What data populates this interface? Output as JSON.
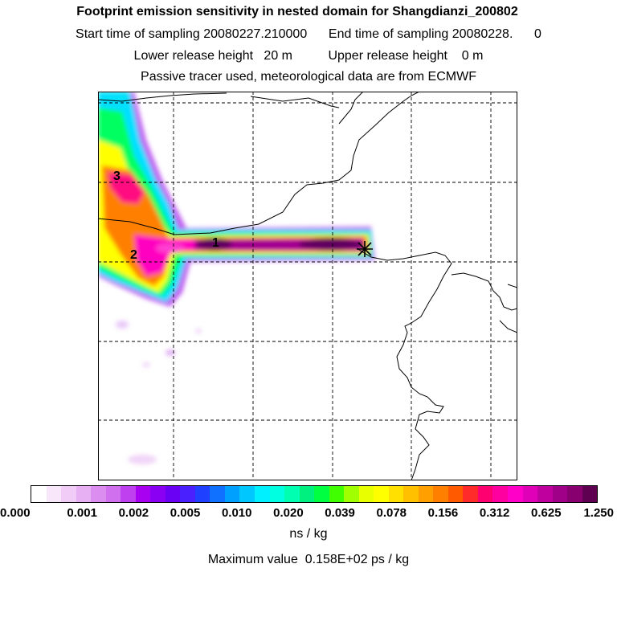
{
  "header": {
    "title": "Footprint emission sensitivity in nested domain for Shangdianzi_200802",
    "sampling_line": "Start time of sampling 20080227.210000      End time of sampling 20080228.      0",
    "release_line": "Lower release height   20 m          Upper release height    0 m",
    "tracer_line": "Passive tracer used, meteorological data are from ECMWF"
  },
  "map": {
    "site_labels": [
      "1",
      "2",
      "3"
    ],
    "release_marker": "x"
  },
  "legend": {
    "tick_labels": [
      "0.000",
      "0.001",
      "0.002",
      "0.005",
      "0.010",
      "0.020",
      "0.039",
      "0.078",
      "0.156",
      "0.312",
      "0.625",
      "1.250"
    ],
    "colors": [
      "#ffffff",
      "#f8e6fb",
      "#f0ccf6",
      "#e6b0f2",
      "#dc8ef0",
      "#d070ee",
      "#bf40ee",
      "#a800f0",
      "#8a00f2",
      "#6a00f4",
      "#4a20ff",
      "#2040ff",
      "#1070ff",
      "#00a0ff",
      "#00c8ff",
      "#00f0ff",
      "#00ffe0",
      "#00ffb0",
      "#00f080",
      "#00ff40",
      "#40ff00",
      "#a0ff00",
      "#e8ff00",
      "#ffff00",
      "#ffe000",
      "#ffc000",
      "#ffa000",
      "#ff8000",
      "#ff5a00",
      "#ff2a2a",
      "#ff0070",
      "#ff00a0",
      "#ff00c8",
      "#e000b8",
      "#c0009e",
      "#a00088",
      "#880070",
      "#600050"
    ],
    "unit": "ns / kg",
    "maximum": "Maximum value  0.158E+02 ps / kg"
  }
}
